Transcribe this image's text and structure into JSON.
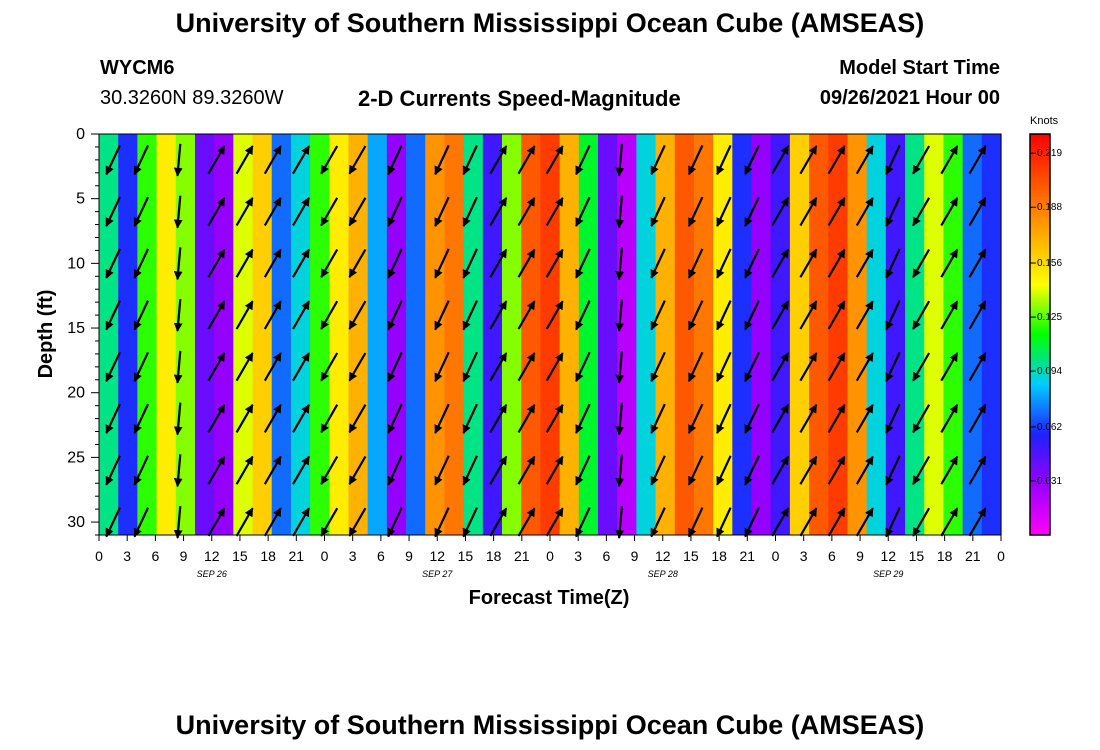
{
  "header": {
    "title": "University of Southern Mississippi Ocean Cube (AMSEAS)",
    "station": "WYCM6",
    "coords": "30.3260N  89.3260W",
    "subtitle": "2-D Currents Speed-Magnitude",
    "model_label": "Model Start Time",
    "model_time": "09/26/2021 Hour 00"
  },
  "footer": {
    "title": "University of Southern Mississippi Ocean Cube (AMSEAS)"
  },
  "chart_data": {
    "type": "heatmap",
    "title": "2-D Currents Speed-Magnitude",
    "xlabel": "Forecast Time(Z)",
    "ylabel": "Depth (ft)",
    "xlim": [
      0,
      96
    ],
    "ylim": [
      0,
      31
    ],
    "x_tick_labels": [
      "0",
      "3",
      "6",
      "9",
      "12",
      "15",
      "18",
      "21",
      "0",
      "3",
      "6",
      "9",
      "12",
      "15",
      "18",
      "21",
      "0",
      "3",
      "6",
      "9",
      "12",
      "15",
      "18",
      "21",
      "0",
      "3",
      "6",
      "9",
      "12",
      "15",
      "18",
      "21",
      "0"
    ],
    "day_labels": [
      "SEP 26",
      "SEP 27",
      "SEP 28",
      "SEP 29"
    ],
    "y_tick_values": [
      0,
      5,
      10,
      15,
      20,
      25,
      30
    ],
    "colorbar": {
      "unit": "Knots",
      "tick_labels": [
        "0.219",
        "0.188",
        "0.156",
        "0.125",
        "0.094",
        "0.062",
        "0.031"
      ],
      "range": [
        0,
        0.23
      ],
      "colors": [
        "#ff00ff",
        "#9a00ff",
        "#2020ff",
        "#00ccff",
        "#00ff00",
        "#ffff00",
        "#ffaa00",
        "#ff5500",
        "#ff0000"
      ]
    },
    "depth_levels_ft": [
      2,
      6,
      10,
      14,
      18,
      22,
      26,
      30
    ],
    "time_columns_hours": [
      1.5,
      4.5,
      8.5,
      12.5,
      15.5,
      18.5,
      21.5,
      24.5,
      27.5,
      31.5,
      36.5,
      39.5,
      42.5,
      45.5,
      48.5,
      51.5,
      55.5,
      59.5,
      63.5,
      66.5,
      69.5,
      72.5,
      75.5,
      78.5,
      81.5,
      84.5,
      87.5,
      90.5,
      93.5
    ],
    "speed_profile_knots": [
      0.1,
      0.06,
      0.12,
      0.15,
      0.13,
      0.04,
      0.03,
      0.14,
      0.16,
      0.07,
      0.09,
      0.12,
      0.15,
      0.17,
      0.08,
      0.03,
      0.07,
      0.18,
      0.19,
      0.1,
      0.05,
      0.13,
      0.2,
      0.21,
      0.17,
      0.11,
      0.04,
      0.02,
      0.09,
      0.17,
      0.2,
      0.19,
      0.15,
      0.06,
      0.03,
      0.05,
      0.16,
      0.2,
      0.21,
      0.18,
      0.09,
      0.05,
      0.1,
      0.14,
      0.12,
      0.07,
      0.06
    ],
    "arrow_angles_deg": [
      245,
      245,
      265,
      60,
      60,
      60,
      60,
      240,
      240,
      245,
      245,
      245,
      60,
      60,
      60,
      245,
      265,
      245,
      245,
      245,
      245,
      60,
      60,
      60,
      60,
      245,
      240,
      60,
      60
    ]
  }
}
